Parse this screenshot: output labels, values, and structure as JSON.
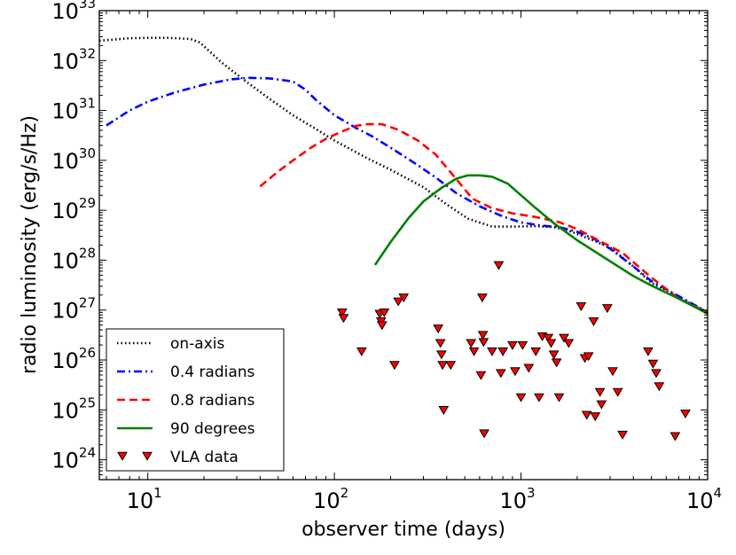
{
  "chart_data": {
    "type": "line",
    "xscale": "log",
    "yscale": "log",
    "xlim": [
      5.5,
      10000
    ],
    "ylim": [
      4e+23,
      1e+33
    ],
    "xlabel": "observer time (days)",
    "ylabel": "radio luminosity (erg/s/Hz)",
    "xticks": [
      {
        "value": 10,
        "base": "10",
        "exp": "1"
      },
      {
        "value": 100,
        "base": "10",
        "exp": "2"
      },
      {
        "value": 1000,
        "base": "10",
        "exp": "3"
      },
      {
        "value": 10000,
        "base": "10",
        "exp": "4"
      }
    ],
    "yticks": [
      {
        "value": 1e+24,
        "base": "10",
        "exp": "24"
      },
      {
        "value": 1e+25,
        "base": "10",
        "exp": "25"
      },
      {
        "value": 1e+26,
        "base": "10",
        "exp": "26"
      },
      {
        "value": 1e+27,
        "base": "10",
        "exp": "27"
      },
      {
        "value": 1e+28,
        "base": "10",
        "exp": "28"
      },
      {
        "value": 1e+29,
        "base": "10",
        "exp": "29"
      },
      {
        "value": 1e+30,
        "base": "10",
        "exp": "30"
      },
      {
        "value": 1e+31,
        "base": "10",
        "exp": "31"
      },
      {
        "value": 1e+32,
        "base": "10",
        "exp": "32"
      },
      {
        "value": 1e+33,
        "base": "10",
        "exp": "33"
      }
    ],
    "legend_position": "bottom-left",
    "series": [
      {
        "name": "on-axis",
        "color": "#000000",
        "style": "dotted",
        "x": [
          5.5,
          8,
          10,
          13,
          17,
          19,
          25,
          33,
          45,
          60,
          80,
          100,
          150,
          200,
          300,
          400,
          520,
          700,
          900,
          1200,
          1500,
          1800,
          2200,
          3000,
          4000,
          5000,
          7000,
          10000
        ],
        "y": [
          2.5e+32,
          2.8e+32,
          2.85e+32,
          2.85e+32,
          2.7e+32,
          2.3e+32,
          9e+31,
          4e+31,
          1.7e+31,
          8e+30,
          4.2e+30,
          2.5e+30,
          1.1e+30,
          6.5e+29,
          2.9e+29,
          1.3e+29,
          6.8e+28,
          4.7e+28,
          4.7e+28,
          4.8e+28,
          4.6e+28,
          3.9e+28,
          2.9e+28,
          1.8e+28,
          7.5e+27,
          3.5e+27,
          1.8e+27,
          9e+26
        ]
      },
      {
        "name": "0.4 radians",
        "color": "#0000ff",
        "style": "dashdot",
        "x": [
          6,
          8,
          10,
          14,
          20,
          28,
          35,
          45,
          60,
          70,
          80,
          100,
          130,
          160,
          200,
          280,
          350,
          450,
          600,
          800,
          1000,
          1300,
          1600,
          2000,
          2500,
          3000,
          4000,
          5000,
          7000,
          10000
        ],
        "y": [
          5e+30,
          1e+31,
          1.5e+31,
          2.3e+31,
          3.3e+31,
          4.2e+31,
          4.5e+31,
          4.4e+31,
          3.8e+31,
          2.6e+31,
          1.6e+31,
          8e+30,
          4.5e+30,
          3e+30,
          1.8e+30,
          8e+29,
          4.5e+29,
          2.2e+29,
          1.2e+29,
          7.5e+28,
          5.7e+28,
          4.9e+28,
          4.6e+28,
          3.7e+28,
          2.6e+28,
          1.7e+28,
          7.5e+27,
          3.8e+27,
          1.9e+27,
          9e+26
        ]
      },
      {
        "name": "0.8 radians",
        "color": "#ff0000",
        "style": "dashed",
        "x": [
          40,
          50,
          60,
          75,
          90,
          110,
          130,
          150,
          180,
          220,
          280,
          350,
          450,
          550,
          700,
          900,
          1200,
          1600,
          2000,
          2500,
          3500,
          5000,
          7000,
          10000
        ],
        "y": [
          3e+29,
          6e+29,
          1e+30,
          1.8e+30,
          2.7e+30,
          3.8e+30,
          4.9e+30,
          5.3e+30,
          5.3e+30,
          4.1e+30,
          2.5e+30,
          1.3e+30,
          4.2e+29,
          1.7e+29,
          1.1e+29,
          8.7e+28,
          7.3e+28,
          5.8e+28,
          4.2e+28,
          2.7e+28,
          1.4e+28,
          4.5e+27,
          1.7e+27,
          9e+26
        ]
      },
      {
        "name": "90 degrees",
        "color": "#008000",
        "style": "solid",
        "x": [
          165,
          200,
          250,
          300,
          380,
          450,
          520,
          600,
          700,
          850,
          1000,
          1200,
          1500,
          2000,
          3000,
          4000,
          5000,
          7000,
          10000
        ],
        "y": [
          8e+27,
          2.3e+28,
          7e+28,
          1.5e+29,
          2.9e+29,
          4.3e+29,
          5e+29,
          5e+29,
          4.7e+29,
          3.4e+29,
          2e+29,
          1.1e+29,
          5.5e+28,
          2.5e+28,
          9.5e+27,
          4.8e+27,
          3.1e+27,
          1.7e+27,
          8.5e+26
        ]
      }
    ],
    "scatter": {
      "name": "VLA data",
      "marker": "triangle-down",
      "color": "#ff0000",
      "edgecolor": "#000000",
      "points": [
        [
          110,
          9e+26
        ],
        [
          112,
          7e+26
        ],
        [
          140,
          1.5e+26
        ],
        [
          175,
          8.5e+26
        ],
        [
          178,
          6e+26
        ],
        [
          180,
          5e+26
        ],
        [
          185,
          9e+26
        ],
        [
          210,
          8e+25
        ],
        [
          220,
          1.5e+27
        ],
        [
          235,
          1.8e+27
        ],
        [
          360,
          4.3e+26
        ],
        [
          370,
          2.2e+26
        ],
        [
          375,
          1.3e+26
        ],
        [
          380,
          8e+25
        ],
        [
          385,
          1e+25
        ],
        [
          420,
          8e+25
        ],
        [
          540,
          2.2e+26
        ],
        [
          560,
          1.5e+26
        ],
        [
          610,
          5e+25
        ],
        [
          620,
          1.8e+27
        ],
        [
          625,
          3.2e+26
        ],
        [
          630,
          2.3e+26
        ],
        [
          635,
          3.4e+24
        ],
        [
          700,
          1.5e+26
        ],
        [
          760,
          8e+27
        ],
        [
          780,
          5.5e+25
        ],
        [
          800,
          1.5e+26
        ],
        [
          900,
          2e+26
        ],
        [
          930,
          6e+25
        ],
        [
          1000,
          1.8e+25
        ],
        [
          1020,
          2e+26
        ],
        [
          1100,
          7e+25
        ],
        [
          1200,
          1.5e+26
        ],
        [
          1250,
          1.8e+25
        ],
        [
          1300,
          3e+26
        ],
        [
          1400,
          2.8e+26
        ],
        [
          1450,
          2.2e+26
        ],
        [
          1500,
          1.3e+26
        ],
        [
          1550,
          9e+25
        ],
        [
          1600,
          1.8e+25
        ],
        [
          1700,
          2.8e+26
        ],
        [
          1800,
          2.2e+26
        ],
        [
          2100,
          1.2e+27
        ],
        [
          2200,
          1.1e+26
        ],
        [
          2250,
          8e+24
        ],
        [
          2300,
          1.2e+26
        ],
        [
          2450,
          6e+26
        ],
        [
          2500,
          7.5e+24
        ],
        [
          2650,
          2.3e+25
        ],
        [
          2700,
          1.3e+25
        ],
        [
          2900,
          1.1e+27
        ],
        [
          3100,
          6e+25
        ],
        [
          3300,
          2.3e+25
        ],
        [
          3500,
          3.2e+24
        ],
        [
          4800,
          1.5e+26
        ],
        [
          5100,
          8.5e+25
        ],
        [
          5300,
          5.5e+25
        ],
        [
          5500,
          3e+25
        ],
        [
          6700,
          3e+24
        ],
        [
          7600,
          8.5e+24
        ]
      ]
    }
  }
}
